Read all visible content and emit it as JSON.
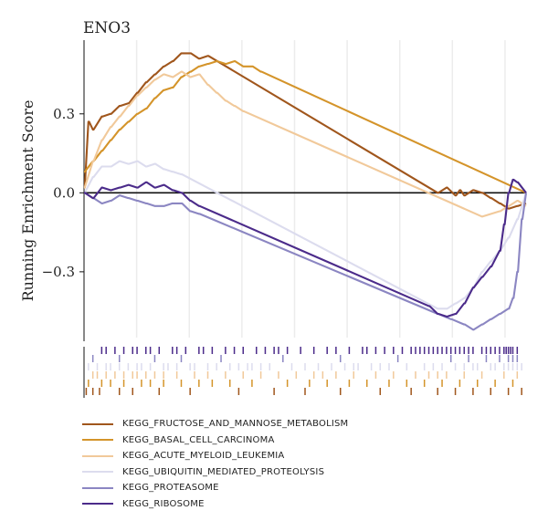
{
  "chart_data": {
    "type": "line",
    "title": "ENO3",
    "ylabel": "Running Enrichment Score",
    "xlim": [
      0,
      100
    ],
    "ylim": [
      -0.55,
      0.58
    ],
    "yticks": [
      -0.3,
      0.0,
      0.3
    ],
    "ytick_labels": [
      "−0.3",
      "0.0",
      "0.3"
    ],
    "grid": "vertical",
    "legend_position": "bottom",
    "series": [
      {
        "name": "KEGG_FRUCTOSE_AND_MANNOSE_METABOLISM",
        "color": "#a0561c",
        "x": [
          0,
          1,
          2,
          4,
          6,
          8,
          10,
          12,
          14,
          16,
          18,
          20,
          22,
          24,
          26,
          28,
          80,
          82,
          84,
          85,
          86,
          88,
          90,
          92,
          94,
          96,
          98,
          100
        ],
        "y": [
          0.02,
          0.27,
          0.24,
          0.29,
          0.3,
          0.33,
          0.34,
          0.38,
          0.42,
          0.45,
          0.48,
          0.5,
          0.53,
          0.53,
          0.51,
          0.52,
          0.0,
          0.02,
          -0.01,
          0.01,
          -0.01,
          0.01,
          0.0,
          -0.02,
          -0.04,
          -0.06,
          -0.05,
          -0.04
        ]
      },
      {
        "name": "KEGG_BASAL_CELL_CARCINOMA",
        "color": "#d4942a",
        "x": [
          0,
          2,
          4,
          6,
          8,
          10,
          12,
          14,
          16,
          18,
          20,
          22,
          24,
          26,
          28,
          30,
          32,
          34,
          36,
          38,
          40,
          100
        ],
        "y": [
          0.08,
          0.12,
          0.16,
          0.2,
          0.24,
          0.27,
          0.3,
          0.32,
          0.36,
          0.39,
          0.4,
          0.44,
          0.46,
          0.48,
          0.49,
          0.5,
          0.49,
          0.5,
          0.48,
          0.48,
          0.46,
          0.0
        ]
      },
      {
        "name": "KEGG_ACUTE_MYELOID_LEUKEMIA",
        "color": "#f1c99a",
        "x": [
          0,
          2,
          4,
          6,
          8,
          10,
          12,
          14,
          16,
          18,
          20,
          22,
          24,
          26,
          28,
          30,
          32,
          34,
          36,
          90,
          94,
          96,
          98,
          100
        ],
        "y": [
          0.02,
          0.12,
          0.2,
          0.25,
          0.29,
          0.33,
          0.37,
          0.4,
          0.43,
          0.45,
          0.44,
          0.46,
          0.44,
          0.45,
          0.41,
          0.38,
          0.35,
          0.33,
          0.31,
          -0.09,
          -0.07,
          -0.05,
          -0.03,
          -0.05
        ]
      },
      {
        "name": "KEGG_UBIQUITIN_MEDIATED_PROTEOLYSIS",
        "color": "#dcdcee",
        "x": [
          0,
          2,
          4,
          6,
          8,
          10,
          12,
          14,
          16,
          18,
          20,
          22,
          80,
          82,
          84,
          86,
          88,
          90,
          92,
          94,
          96,
          98,
          100
        ],
        "y": [
          0.0,
          0.06,
          0.1,
          0.1,
          0.12,
          0.11,
          0.12,
          0.1,
          0.11,
          0.09,
          0.08,
          0.07,
          -0.44,
          -0.44,
          -0.42,
          -0.4,
          -0.36,
          -0.3,
          -0.26,
          -0.22,
          -0.17,
          -0.1,
          0.0
        ]
      },
      {
        "name": "KEGG_PROTEASOME",
        "color": "#8b86c2",
        "x": [
          0,
          2,
          4,
          6,
          8,
          10,
          12,
          14,
          16,
          18,
          20,
          22,
          24,
          26,
          80,
          83,
          86,
          88,
          90,
          92,
          94,
          96,
          97,
          98,
          99,
          100
        ],
        "y": [
          0.0,
          -0.02,
          -0.04,
          -0.03,
          -0.01,
          -0.02,
          -0.03,
          -0.04,
          -0.05,
          -0.05,
          -0.04,
          -0.04,
          -0.07,
          -0.08,
          -0.46,
          -0.48,
          -0.5,
          -0.52,
          -0.5,
          -0.48,
          -0.46,
          -0.44,
          -0.4,
          -0.3,
          -0.1,
          0.0
        ]
      },
      {
        "name": "KEGG_RIBOSOME",
        "color": "#4b2b8a",
        "x": [
          0,
          2,
          4,
          6,
          8,
          10,
          12,
          14,
          16,
          18,
          20,
          22,
          24,
          26,
          78,
          80,
          82,
          84,
          86,
          88,
          90,
          92,
          94,
          95,
          96,
          97,
          98,
          100
        ],
        "y": [
          0.0,
          -0.02,
          0.02,
          0.01,
          0.02,
          0.03,
          0.02,
          0.04,
          0.02,
          0.03,
          0.01,
          0.0,
          -0.03,
          -0.05,
          -0.43,
          -0.46,
          -0.47,
          -0.46,
          -0.42,
          -0.36,
          -0.32,
          -0.28,
          -0.22,
          -0.12,
          0.0,
          0.05,
          0.04,
          0.0
        ]
      }
    ],
    "rug_rows": [
      {
        "series": "KEGG_RIBOSOME",
        "color": "#4b2b8a",
        "positions": [
          4,
          5,
          7,
          9,
          11,
          12,
          14,
          15,
          17,
          20,
          21,
          23,
          26,
          27,
          29,
          32,
          34,
          36,
          39,
          41,
          43,
          44,
          46,
          49,
          52,
          55,
          57,
          60,
          63,
          64,
          66,
          68,
          70,
          72,
          74,
          75,
          76,
          77,
          78,
          79,
          80,
          81,
          82,
          83,
          84,
          85,
          86,
          87,
          88,
          90,
          91,
          92,
          93,
          94,
          95,
          95.5,
          96,
          96.5,
          97,
          98
        ]
      },
      {
        "series": "KEGG_PROTEASOME",
        "color": "#8b86c2",
        "positions": [
          2,
          8,
          16,
          22,
          31,
          45,
          58,
          71,
          83,
          87,
          91,
          94,
          96,
          97,
          98
        ]
      },
      {
        "series": "KEGG_UBIQUITIN_MEDIATED_PROTEOLYSIS",
        "color": "#dcdcee",
        "positions": [
          1,
          3,
          5,
          6,
          8,
          10,
          12,
          13,
          15,
          18,
          19,
          21,
          24,
          25,
          28,
          30,
          33,
          35,
          37,
          38,
          40,
          42,
          47,
          50,
          53,
          56,
          59,
          61,
          62,
          65,
          67,
          69,
          73,
          77,
          79,
          81,
          84,
          86,
          88,
          89,
          92,
          93,
          95,
          96,
          97,
          98,
          99
        ]
      },
      {
        "series": "KEGG_ACUTE_MYELOID_LEUKEMIA",
        "color": "#f1c99a",
        "positions": [
          2,
          3,
          5,
          7,
          9,
          11,
          12,
          14,
          16,
          18,
          21,
          25,
          28,
          32,
          36,
          40,
          44,
          48,
          52,
          54,
          57,
          61,
          66,
          70,
          75,
          78,
          80,
          82,
          86,
          90,
          95,
          98
        ]
      },
      {
        "series": "KEGG_BASAL_CELL_CARCINOMA",
        "color": "#d4942a",
        "positions": [
          1,
          4,
          6,
          9,
          13,
          15,
          18,
          22,
          26,
          29,
          33,
          38,
          46,
          51,
          55,
          60,
          64,
          69,
          73,
          77,
          81,
          85,
          89,
          93,
          97
        ]
      },
      {
        "series": "KEGG_FRUCTOSE_AND_MANNOSE_METABOLISM",
        "color": "#a0561c",
        "positions": [
          0.5,
          2,
          3.5,
          8,
          11,
          17,
          24,
          35,
          43,
          50,
          58,
          67,
          74,
          80,
          84,
          88,
          92,
          96,
          99
        ]
      }
    ]
  },
  "legend": {
    "items": [
      {
        "label": "KEGG_FRUCTOSE_AND_MANNOSE_METABOLISM",
        "color": "#a0561c"
      },
      {
        "label": "KEGG_BASAL_CELL_CARCINOMA",
        "color": "#d4942a"
      },
      {
        "label": "KEGG_ACUTE_MYELOID_LEUKEMIA",
        "color": "#f1c99a"
      },
      {
        "label": "KEGG_UBIQUITIN_MEDIATED_PROTEOLYSIS",
        "color": "#dcdcee"
      },
      {
        "label": "KEGG_PROTEASOME",
        "color": "#8b86c2"
      },
      {
        "label": "KEGG_RIBOSOME",
        "color": "#4b2b8a"
      }
    ]
  }
}
